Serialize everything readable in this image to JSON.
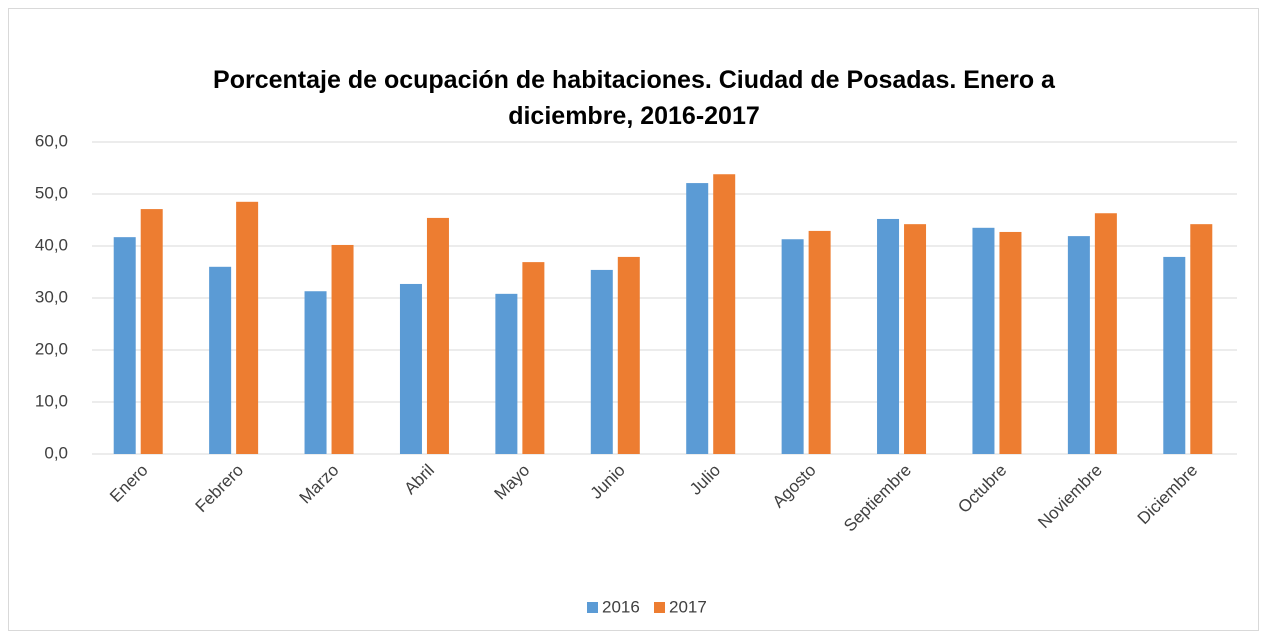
{
  "chart_data": {
    "type": "bar",
    "title": "Porcentaje de ocupación de habitaciones. Ciudad de Posadas. Enero a diciembre, 2016-2017",
    "categories": [
      "Enero",
      "Febrero",
      "Marzo",
      "Abril",
      "Mayo",
      "Junio",
      "Julio",
      "Agosto",
      "Septiembre",
      "Octubre",
      "Noviembre",
      "Diciembre"
    ],
    "series": [
      {
        "name": "2016",
        "color": "#5b9bd5",
        "values": [
          41.7,
          36.0,
          31.3,
          32.7,
          30.8,
          35.4,
          52.1,
          41.3,
          45.2,
          43.5,
          41.9,
          37.9
        ]
      },
      {
        "name": "2017",
        "color": "#ed7d31",
        "values": [
          47.1,
          48.5,
          40.2,
          45.4,
          36.9,
          37.9,
          53.8,
          42.9,
          44.2,
          42.7,
          46.3,
          44.2
        ]
      }
    ],
    "ylim": [
      0,
      60
    ],
    "yticks": [
      {
        "value": 0,
        "label": "0,0"
      },
      {
        "value": 10,
        "label": "10,0"
      },
      {
        "value": 20,
        "label": "20,0"
      },
      {
        "value": 30,
        "label": "30,0"
      },
      {
        "value": 40,
        "label": "40,0"
      },
      {
        "value": 50,
        "label": "50,0"
      },
      {
        "value": 60,
        "label": "60,0"
      }
    ],
    "grid": true,
    "legend": "bottom"
  }
}
